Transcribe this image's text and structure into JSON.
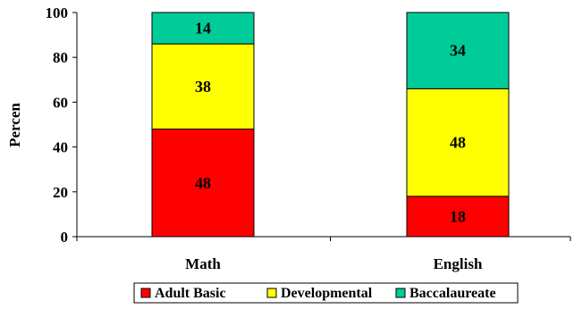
{
  "chart_data": {
    "type": "bar",
    "stacked": true,
    "categories": [
      "Math",
      "English"
    ],
    "series": [
      {
        "name": "Adult Basic",
        "values": [
          48,
          18
        ],
        "color": "#ff0000"
      },
      {
        "name": "Developmental",
        "values": [
          38,
          48
        ],
        "color": "#ffff00"
      },
      {
        "name": "Baccalaureate",
        "values": [
          14,
          34
        ],
        "color": "#00cc99"
      }
    ],
    "title": "",
    "xlabel": "",
    "ylabel": "Percen",
    "ylim": [
      0,
      100
    ],
    "yticks": [
      0,
      20,
      40,
      60,
      80,
      100
    ],
    "grid": false,
    "legend_position": "bottom-center",
    "show_data_labels": true
  }
}
